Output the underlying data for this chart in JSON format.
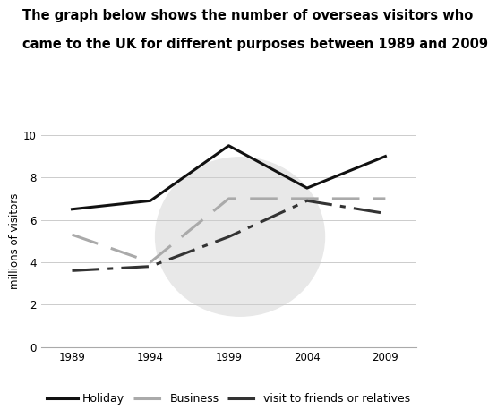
{
  "title_line1": "The graph below shows the number of overseas visitors who",
  "title_line2": "came to the UK for different purposes between 1989 and 2009",
  "ylabel": "millions of visitors",
  "years": [
    1989,
    1994,
    1999,
    2004,
    2009
  ],
  "holiday": [
    6.5,
    6.9,
    9.5,
    7.5,
    9.0
  ],
  "business": [
    5.3,
    4.0,
    7.0,
    7.0,
    7.0
  ],
  "friends": [
    3.6,
    3.8,
    5.2,
    6.9,
    6.3
  ],
  "ylim": [
    0,
    10
  ],
  "yticks": [
    0,
    2,
    4,
    6,
    8,
    10
  ],
  "xticks": [
    1989,
    1994,
    1999,
    2004,
    2009
  ],
  "holiday_color": "#111111",
  "business_color": "#aaaaaa",
  "friends_color": "#333333",
  "background_color": "#ffffff",
  "watermark_color": "#e8e8e8",
  "grid_color": "#cccccc",
  "legend_labels": [
    "Holiday",
    "Business",
    "visit to friends or relatives"
  ]
}
